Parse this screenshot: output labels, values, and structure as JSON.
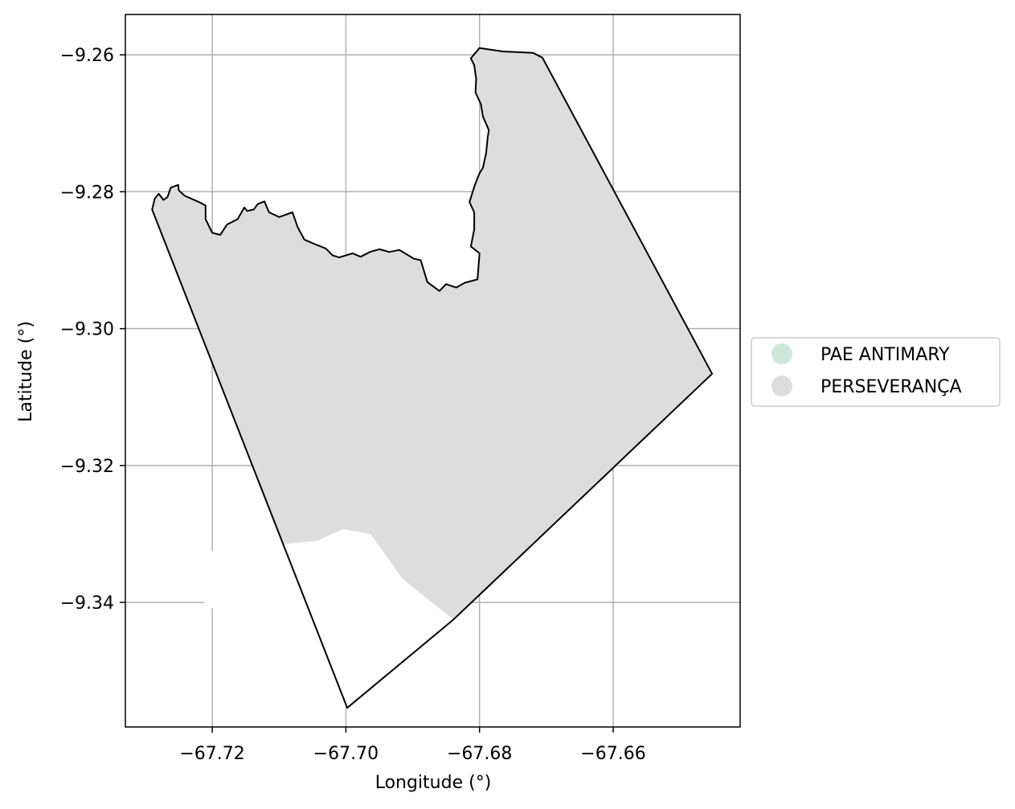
{
  "chart_data": {
    "type": "map",
    "xlabel": "Longitude (°)",
    "ylabel": "Latitude (°)",
    "xlim": [
      -67.733,
      -67.641
    ],
    "ylim": [
      -9.3582,
      -9.2541
    ],
    "xticks": [
      -67.72,
      -67.7,
      -67.68,
      -67.66
    ],
    "xtick_labels": [
      "−67.72",
      "−67.70",
      "−67.68",
      "−67.66"
    ],
    "yticks": [
      -9.26,
      -9.28,
      -9.3,
      -9.32,
      -9.34
    ],
    "ytick_labels": [
      "−9.26",
      "−9.28",
      "−9.30",
      "−9.32",
      "−9.34"
    ],
    "grid": true,
    "legend": {
      "placement": "right",
      "entries": [
        {
          "label": "PAE ANTIMARY",
          "color": "#cce8da"
        },
        {
          "label": "PERSEVERANÇA",
          "color": "#dddddd"
        }
      ]
    },
    "fill_color": "#dddddd",
    "outline_color": "#000000",
    "boundary": [
      [
        -67.6706,
        -9.2604
      ],
      [
        -67.6452,
        -9.3066
      ],
      [
        -67.6839,
        -9.3425
      ],
      [
        -67.6998,
        -9.3554
      ],
      [
        -67.729,
        -9.2826
      ],
      [
        -67.7286,
        -9.281
      ],
      [
        -67.728,
        -9.2803
      ],
      [
        -67.7273,
        -9.2812
      ],
      [
        -67.7267,
        -9.2808
      ],
      [
        -67.7262,
        -9.2794
      ],
      [
        -67.7251,
        -9.279
      ],
      [
        -67.725,
        -9.2798
      ],
      [
        -67.7241,
        -9.2806
      ],
      [
        -67.722,
        -9.2815
      ],
      [
        -67.721,
        -9.282
      ],
      [
        -67.721,
        -9.284
      ],
      [
        -67.72,
        -9.286
      ],
      [
        -67.7188,
        -9.2863
      ],
      [
        -67.7178,
        -9.2848
      ],
      [
        -67.7162,
        -9.284
      ],
      [
        -67.7152,
        -9.2823
      ],
      [
        -67.7148,
        -9.2828
      ],
      [
        -67.7138,
        -9.2826
      ],
      [
        -67.7132,
        -9.2818
      ],
      [
        -67.7122,
        -9.2814
      ],
      [
        -67.7115,
        -9.283
      ],
      [
        -67.71,
        -9.2837
      ],
      [
        -67.708,
        -9.283
      ],
      [
        -67.7072,
        -9.2852
      ],
      [
        -67.7062,
        -9.287
      ],
      [
        -67.7048,
        -9.2876
      ],
      [
        -67.703,
        -9.2883
      ],
      [
        -67.702,
        -9.2893
      ],
      [
        -67.701,
        -9.2896
      ],
      [
        -67.699,
        -9.289
      ],
      [
        -67.6978,
        -9.2895
      ],
      [
        -67.6964,
        -9.2888
      ],
      [
        -67.695,
        -9.2884
      ],
      [
        -67.6935,
        -9.2888
      ],
      [
        -67.692,
        -9.2885
      ],
      [
        -67.6898,
        -9.2898
      ],
      [
        -67.6888,
        -9.29
      ],
      [
        -67.6878,
        -9.2932
      ],
      [
        -67.686,
        -9.2945
      ],
      [
        -67.685,
        -9.2935
      ],
      [
        -67.6835,
        -9.294
      ],
      [
        -67.6822,
        -9.2933
      ],
      [
        -67.6803,
        -9.2928
      ],
      [
        -67.68,
        -9.289
      ],
      [
        -67.6813,
        -9.288
      ],
      [
        -67.6808,
        -9.2855
      ],
      [
        -67.6808,
        -9.283
      ],
      [
        -67.6815,
        -9.2815
      ],
      [
        -67.6807,
        -9.279
      ],
      [
        -67.68,
        -9.2773
      ],
      [
        -67.6795,
        -9.2765
      ],
      [
        -67.679,
        -9.2743
      ],
      [
        -67.6788,
        -9.2722
      ],
      [
        -67.6786,
        -9.271
      ],
      [
        -67.6795,
        -9.269
      ],
      [
        -67.6798,
        -9.2672
      ],
      [
        -67.6806,
        -9.2655
      ],
      [
        -67.6805,
        -9.2635
      ],
      [
        -67.6808,
        -9.2615
      ],
      [
        -67.6813,
        -9.2605
      ],
      [
        -67.68,
        -9.259
      ],
      [
        -67.6765,
        -9.2595
      ],
      [
        -67.672,
        -9.2597
      ]
    ],
    "notes_nodata": [
      [
        [
          -67.7302,
          -9.3335
        ],
        [
          -67.7043,
          -9.331
        ],
        [
          -67.7004,
          -9.3293
        ],
        [
          -67.6963,
          -9.33
        ],
        [
          -67.6916,
          -9.3365
        ],
        [
          -67.6839,
          -9.3425
        ],
        [
          -67.6998,
          -9.3554
        ]
      ]
    ]
  }
}
